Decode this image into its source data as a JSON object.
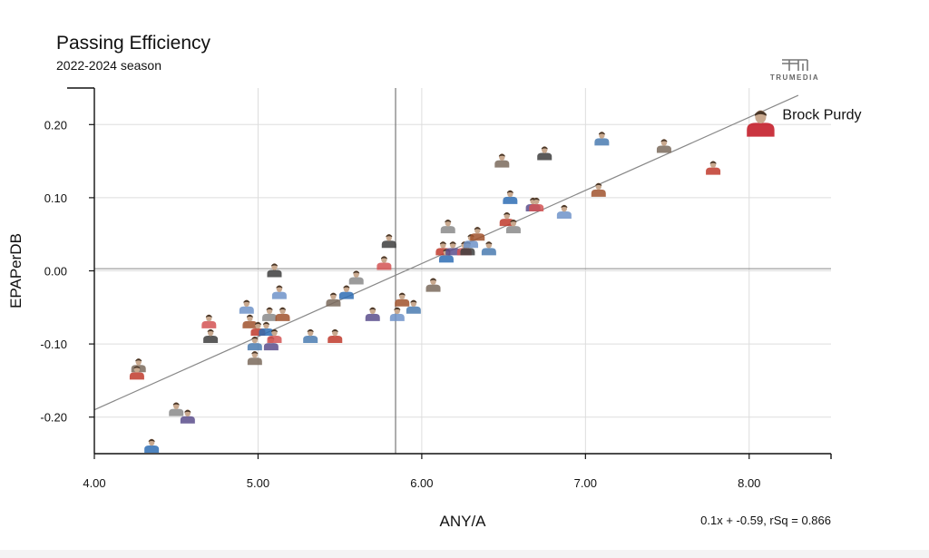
{
  "header": {
    "title": "Passing Efficiency",
    "subtitle": "2022-2024 season",
    "logo_text": "TRUMEDIA"
  },
  "chart_data": {
    "type": "scatter",
    "title": "Passing Efficiency",
    "subtitle": "2022-2024 season",
    "xlabel": "ANY/A",
    "ylabel": "EPAPerDB",
    "xlim": [
      4.0,
      8.5
    ],
    "ylim": [
      -0.25,
      0.25
    ],
    "xticks": [
      "4.00",
      "5.00",
      "6.00",
      "7.00",
      "8.00"
    ],
    "yticks": [
      "-0.20",
      "-0.10",
      "0.00",
      "0.10",
      "0.20"
    ],
    "x_reference": 5.84,
    "y_reference": 0.003,
    "grid": true,
    "trendline": {
      "slope": 0.1,
      "intercept": -0.59,
      "label": "0.1x + -0.59, rSq = 0.866"
    },
    "highlight": {
      "name": "Brock Purdy",
      "x": 8.07,
      "y": 0.2
    },
    "points": [
      {
        "x": 4.27,
        "y": -0.13
      },
      {
        "x": 4.26,
        "y": -0.14
      },
      {
        "x": 4.35,
        "y": -0.24
      },
      {
        "x": 4.5,
        "y": -0.19
      },
      {
        "x": 4.57,
        "y": -0.2
      },
      {
        "x": 4.7,
        "y": -0.07
      },
      {
        "x": 4.71,
        "y": -0.09
      },
      {
        "x": 4.93,
        "y": -0.05
      },
      {
        "x": 4.95,
        "y": -0.07
      },
      {
        "x": 4.98,
        "y": -0.1
      },
      {
        "x": 4.98,
        "y": -0.12
      },
      {
        "x": 5.0,
        "y": -0.08
      },
      {
        "x": 5.05,
        "y": -0.08
      },
      {
        "x": 5.07,
        "y": -0.06
      },
      {
        "x": 5.08,
        "y": -0.1
      },
      {
        "x": 5.1,
        "y": -0.09
      },
      {
        "x": 5.1,
        "y": 0.0
      },
      {
        "x": 5.13,
        "y": -0.03
      },
      {
        "x": 5.15,
        "y": -0.06
      },
      {
        "x": 5.32,
        "y": -0.09
      },
      {
        "x": 5.46,
        "y": -0.04
      },
      {
        "x": 5.47,
        "y": -0.09
      },
      {
        "x": 5.54,
        "y": -0.03
      },
      {
        "x": 5.6,
        "y": -0.01
      },
      {
        "x": 5.7,
        "y": -0.06
      },
      {
        "x": 5.77,
        "y": 0.01
      },
      {
        "x": 5.8,
        "y": 0.04
      },
      {
        "x": 5.85,
        "y": -0.06
      },
      {
        "x": 5.88,
        "y": -0.04
      },
      {
        "x": 5.95,
        "y": -0.05
      },
      {
        "x": 6.07,
        "y": -0.02
      },
      {
        "x": 6.13,
        "y": 0.03
      },
      {
        "x": 6.15,
        "y": 0.02
      },
      {
        "x": 6.16,
        "y": 0.06
      },
      {
        "x": 6.19,
        "y": 0.03
      },
      {
        "x": 6.26,
        "y": 0.03
      },
      {
        "x": 6.28,
        "y": 0.03
      },
      {
        "x": 6.3,
        "y": 0.04
      },
      {
        "x": 6.34,
        "y": 0.05
      },
      {
        "x": 6.41,
        "y": 0.03
      },
      {
        "x": 6.49,
        "y": 0.15
      },
      {
        "x": 6.52,
        "y": 0.07
      },
      {
        "x": 6.54,
        "y": 0.1
      },
      {
        "x": 6.56,
        "y": 0.06
      },
      {
        "x": 6.68,
        "y": 0.09
      },
      {
        "x": 6.7,
        "y": 0.09
      },
      {
        "x": 6.75,
        "y": 0.16
      },
      {
        "x": 6.87,
        "y": 0.08
      },
      {
        "x": 7.08,
        "y": 0.11
      },
      {
        "x": 7.1,
        "y": 0.18
      },
      {
        "x": 7.48,
        "y": 0.17
      },
      {
        "x": 7.78,
        "y": 0.14
      }
    ]
  }
}
